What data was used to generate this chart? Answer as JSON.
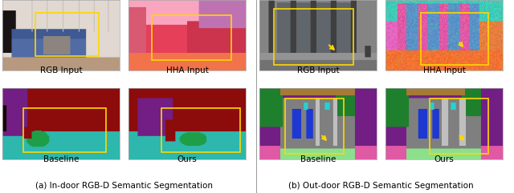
{
  "figsize": [
    6.4,
    2.41
  ],
  "dpi": 100,
  "background_color": "#ffffff",
  "label_fontsize": 7.5,
  "caption_fontsize": 7.5,
  "caption_left": "(a) In-door RGB-D Semantic Segmentation",
  "caption_right": "(b) Out-door RGB-D Semantic Segmentation",
  "labels_top_left": [
    "RGB Input",
    "HHA Input"
  ],
  "labels_bottom_left": [
    "Baseline",
    "Ours"
  ],
  "labels_top_right": [
    "RGB Input",
    "HHA Input"
  ],
  "labels_bottom_right": [
    "Baseline",
    "Ours"
  ]
}
